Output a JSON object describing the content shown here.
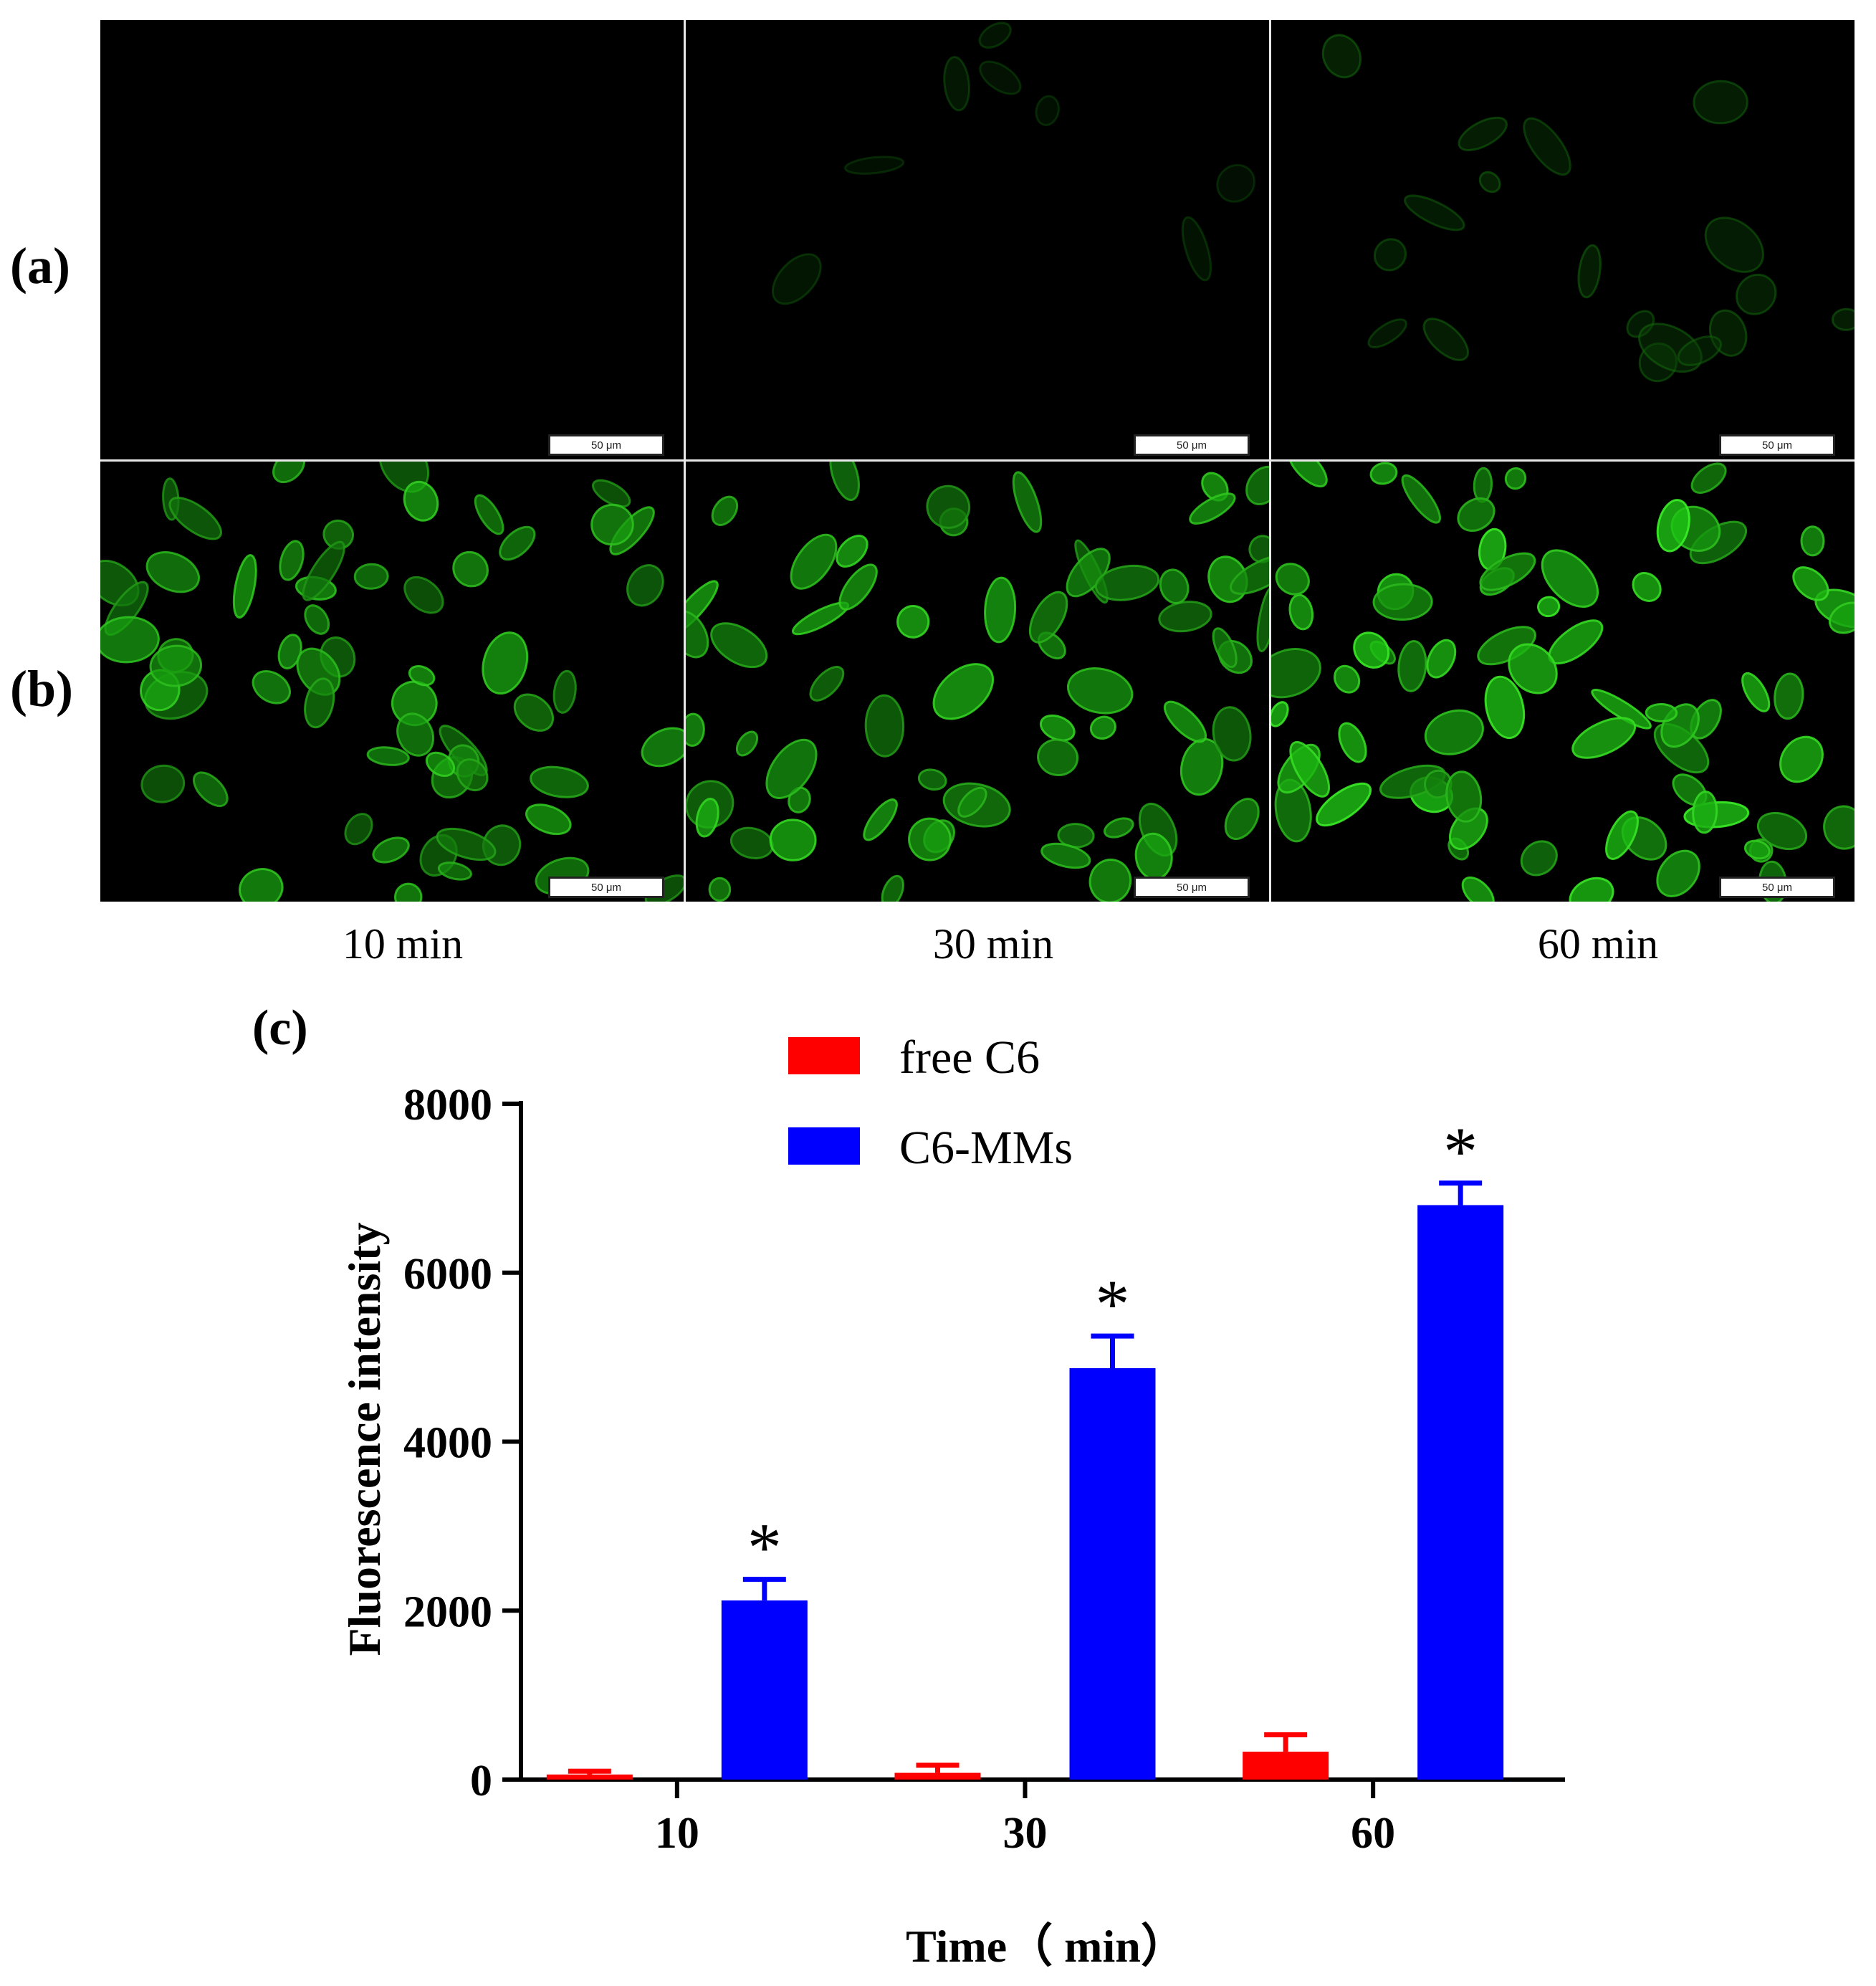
{
  "figure": {
    "row_labels": [
      "(a)",
      "(b)"
    ],
    "time_labels": [
      "10 min",
      "30 min",
      "60 min"
    ],
    "scale_bar_text": "50 μm",
    "panel_c_label": "(c)"
  },
  "micrographs": [
    {
      "row": "a",
      "time": "10 min",
      "fluorescence_level": 0.0
    },
    {
      "row": "a",
      "time": "30 min",
      "fluorescence_level": 0.12
    },
    {
      "row": "a",
      "time": "60 min",
      "fluorescence_level": 0.25
    },
    {
      "row": "b",
      "time": "10 min",
      "fluorescence_level": 0.85
    },
    {
      "row": "b",
      "time": "30 min",
      "fluorescence_level": 0.9
    },
    {
      "row": "b",
      "time": "60 min",
      "fluorescence_level": 1.0
    }
  ],
  "chart_data": {
    "type": "bar",
    "categories": [
      "10",
      "30",
      "60"
    ],
    "series": [
      {
        "name": "free C6",
        "color": "#ff0000",
        "values": [
          60,
          80,
          330
        ],
        "errors": [
          40,
          90,
          200
        ]
      },
      {
        "name": "C6-MMs",
        "color": "#0000ff",
        "values": [
          2120,
          4870,
          6800
        ],
        "errors": [
          250,
          380,
          260
        ]
      }
    ],
    "significance_marker": "*",
    "xlabel": "Time（ min）",
    "ylabel": "Fluorescence intensity",
    "ylim": [
      0,
      8000
    ],
    "yticks": [
      "0",
      "2000",
      "4000",
      "6000",
      "8000"
    ],
    "legend_position": "top-center",
    "grid": false
  }
}
